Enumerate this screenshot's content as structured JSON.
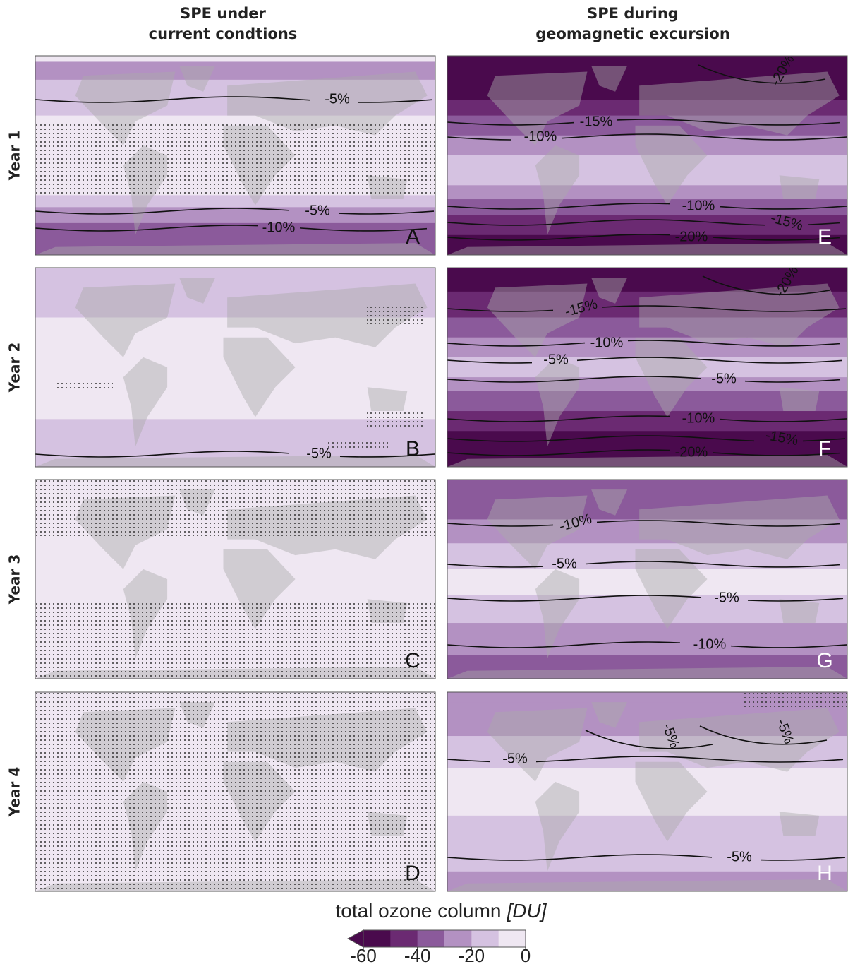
{
  "columns": [
    [
      "SPE under",
      "current condtions"
    ],
    [
      "SPE during",
      "geomagnetic excursion"
    ]
  ],
  "rows": [
    "Year 1",
    "Year 2",
    "Year 3",
    "Year 4"
  ],
  "panels": [
    {
      "letter": "A",
      "contour_labels": [
        "-5%",
        "-5%",
        "-10%"
      ]
    },
    {
      "letter": "B",
      "contour_labels": [
        "-5%"
      ]
    },
    {
      "letter": "C",
      "contour_labels": []
    },
    {
      "letter": "D",
      "contour_labels": []
    },
    {
      "letter": "E",
      "contour_labels": [
        "-20%",
        "-15%",
        "-10%",
        "-10%",
        "-15%",
        "-20%"
      ]
    },
    {
      "letter": "F",
      "contour_labels": [
        "-20%",
        "-15%",
        "-10%",
        "-5%",
        "-5%",
        "-10%",
        "-15%",
        "-20%"
      ]
    },
    {
      "letter": "G",
      "contour_labels": [
        "-10%",
        "-5%",
        "-5%",
        "-10%"
      ]
    },
    {
      "letter": "H",
      "contour_labels": [
        "-5%",
        "-5%",
        "-5%",
        "-5%"
      ]
    }
  ],
  "colorbar": {
    "label": "total ozone column",
    "unit": "[DU]",
    "lim": [
      -60,
      0
    ],
    "ticks": [
      -60,
      -40,
      -20,
      0
    ],
    "colors": [
      "#4a0a4d",
      "#6b2a72",
      "#8b5a9b",
      "#b391c2",
      "#d5c2e1",
      "#efe7f2"
    ]
  }
}
